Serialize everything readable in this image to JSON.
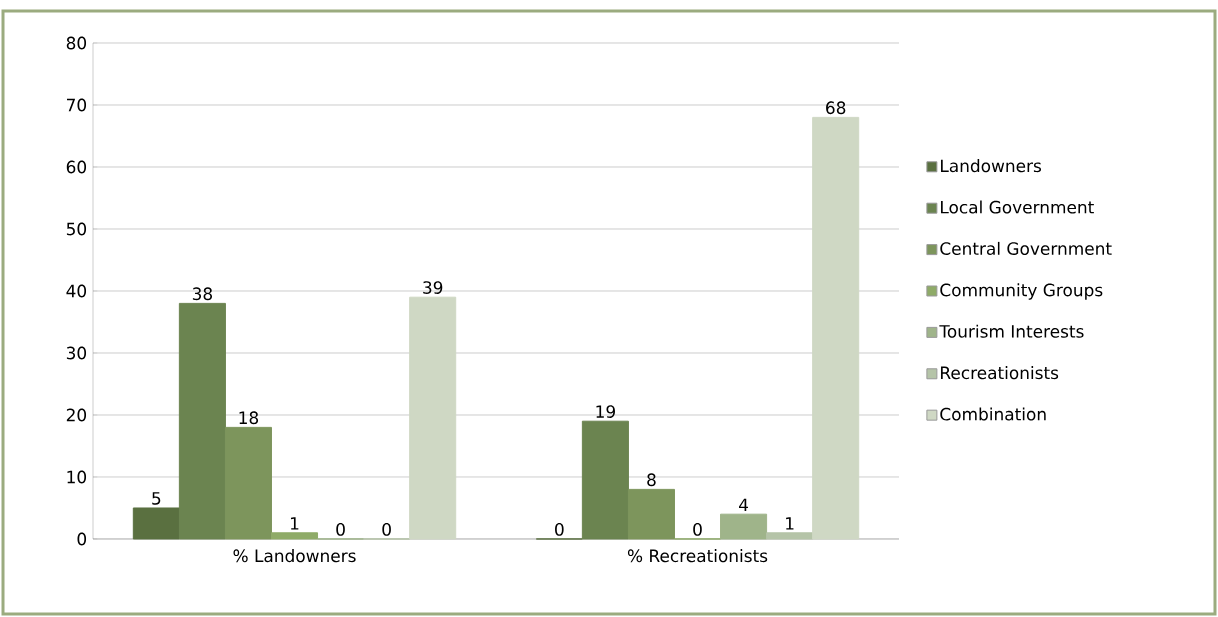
{
  "chart_data": {
    "type": "bar",
    "categories": [
      "% Landowners",
      "% Recreationists"
    ],
    "series": [
      {
        "name": "Landowners",
        "color": "#5a7040",
        "values": [
          5,
          0
        ]
      },
      {
        "name": "Local Government",
        "color": "#6b8450",
        "values": [
          38,
          19
        ]
      },
      {
        "name": "Central Government",
        "color": "#7d955c",
        "values": [
          18,
          8
        ]
      },
      {
        "name": "Community Groups",
        "color": "#8fab68",
        "values": [
          1,
          0
        ]
      },
      {
        "name": "Tourism Interests",
        "color": "#9fb48a",
        "values": [
          0,
          4
        ]
      },
      {
        "name": "Recreationists",
        "color": "#b5c4a8",
        "values": [
          0,
          1
        ]
      },
      {
        "name": "Combination",
        "color": "#cfd8c4",
        "values": [
          39,
          68
        ]
      }
    ],
    "ylim": [
      0,
      80
    ],
    "yticks": [
      0,
      10,
      20,
      30,
      40,
      50,
      60,
      70,
      80
    ],
    "grid": "y",
    "legend": "right",
    "data_labels": true
  }
}
